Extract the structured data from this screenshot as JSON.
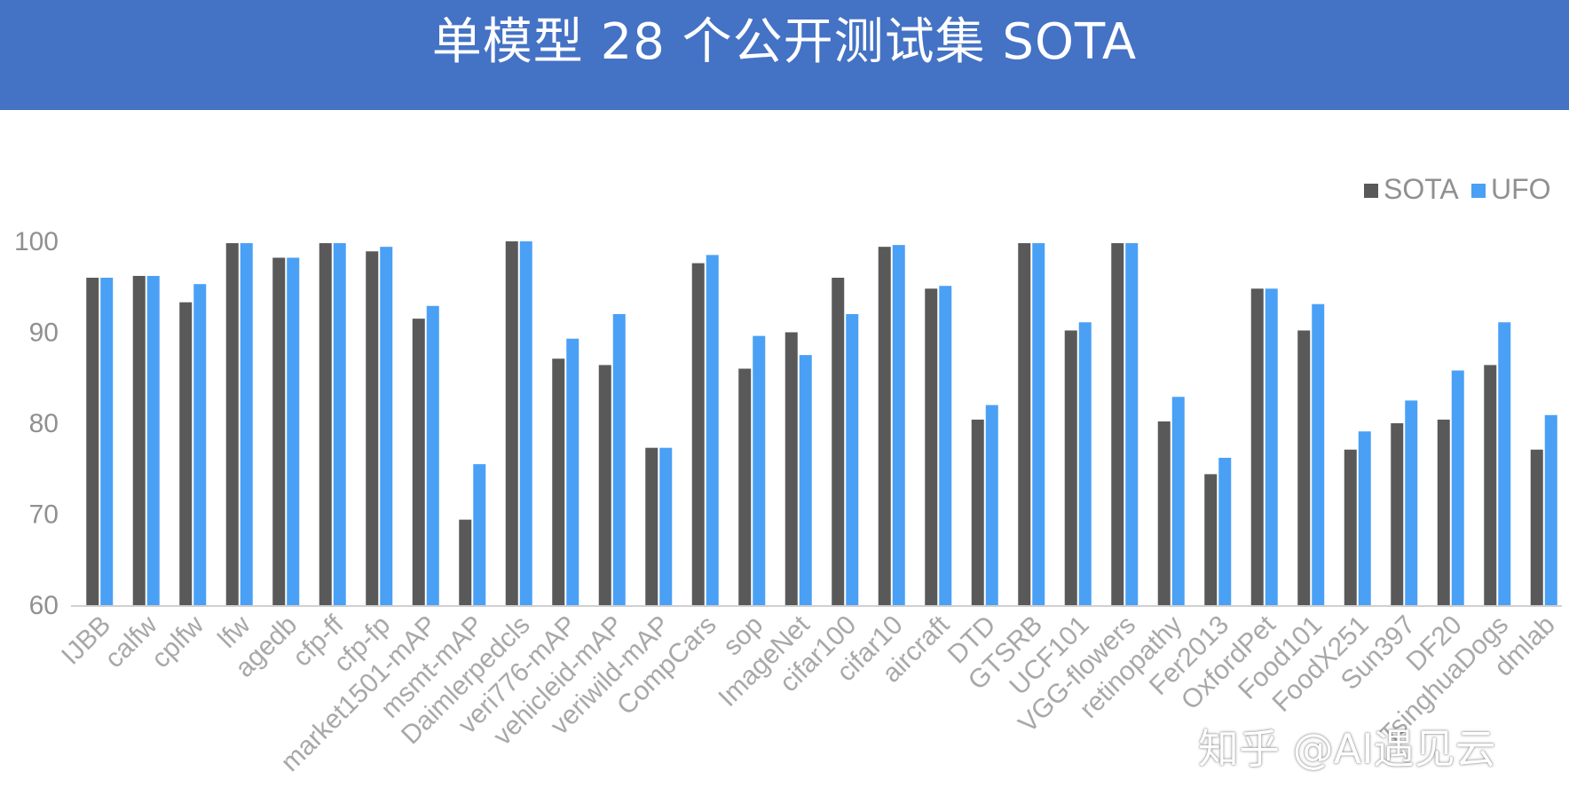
{
  "header": {
    "title": "单模型 28 个公开测试集 SOTA"
  },
  "watermark": "知乎 @AI遇见云",
  "colors": {
    "header_bg": "#4472c4",
    "sota": "#595959",
    "ufo": "#4aa0f5",
    "axis": "#d0d0d0"
  },
  "chart_data": {
    "type": "bar",
    "title": "单模型 28 个公开测试集 SOTA",
    "xlabel": "",
    "ylabel": "",
    "ylim": [
      60,
      100
    ],
    "yticks": [
      60,
      70,
      80,
      90,
      100
    ],
    "grid": false,
    "legend": "top-right",
    "categories": [
      "IJBB",
      "calfw",
      "cplfw",
      "lfw",
      "agedb",
      "cfp-ff",
      "cfp-fp",
      "market1501-mAP",
      "msmt-mAP",
      "Daimlerpedcls",
      "veri776-mAP",
      "vehicleid-mAP",
      "veriwild-mAP",
      "CompCars",
      "sop",
      "ImageNet",
      "cifar100",
      "cifar10",
      "aircraft",
      "DTD",
      "GTSRB",
      "UCF101",
      "VGG-flowers",
      "retinopathy",
      "Fer2013",
      "OxfordPet",
      "Food101",
      "FoodX251",
      "Sun397",
      "DF20",
      "TsinghuaDogs",
      "dmlab"
    ],
    "series": [
      {
        "name": "SOTA",
        "color": "#595959",
        "values": [
          96.0,
          96.2,
          93.3,
          99.8,
          98.2,
          99.8,
          98.9,
          91.5,
          69.4,
          100.0,
          87.1,
          86.4,
          77.3,
          97.6,
          86.0,
          90.0,
          96.0,
          99.4,
          94.8,
          80.4,
          99.8,
          90.2,
          99.8,
          80.2,
          74.4,
          94.8,
          90.2,
          77.1,
          80.0,
          80.4,
          86.4,
          77.1
        ]
      },
      {
        "name": "UFO",
        "color": "#4aa0f5",
        "values": [
          96.0,
          96.2,
          95.3,
          99.8,
          98.2,
          99.8,
          99.4,
          92.9,
          75.5,
          100.0,
          89.3,
          92.0,
          77.3,
          98.5,
          89.6,
          87.5,
          92.0,
          99.6,
          95.1,
          82.0,
          99.8,
          91.1,
          99.8,
          82.9,
          76.2,
          94.8,
          93.1,
          79.1,
          82.5,
          85.8,
          91.1,
          80.9
        ]
      }
    ]
  }
}
